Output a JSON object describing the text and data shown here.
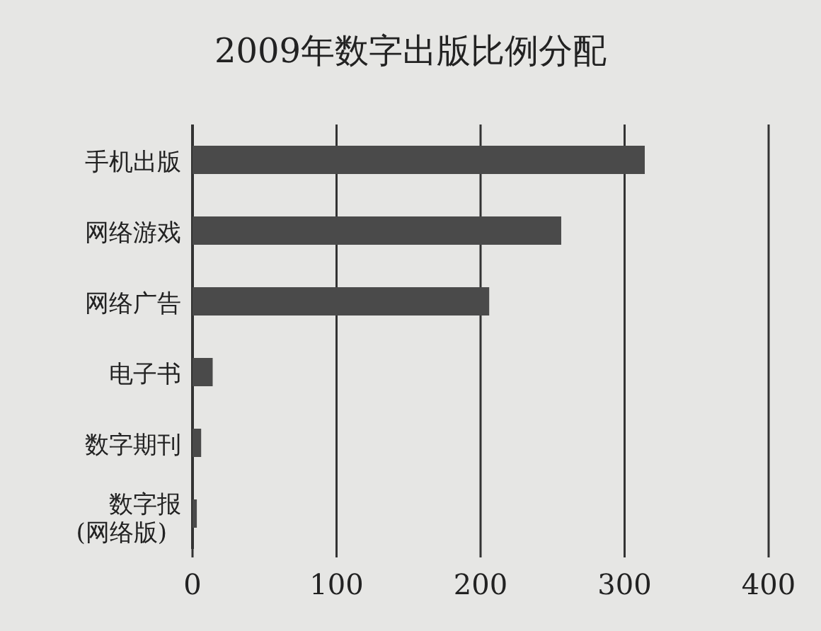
{
  "chart_data": {
    "type": "bar",
    "orientation": "horizontal",
    "title": "2009年数字出版比例分配",
    "categories": [
      "手机出版",
      "网络游戏",
      "网络广告",
      "电子书",
      "数字期刊",
      "数字报\n(网络版)"
    ],
    "values": [
      314,
      256,
      206,
      14,
      6,
      3
    ],
    "color": "#4a4a4a",
    "xlim": [
      0,
      400
    ],
    "xticks": [
      0,
      100,
      200,
      300,
      400
    ],
    "grid": "x"
  }
}
